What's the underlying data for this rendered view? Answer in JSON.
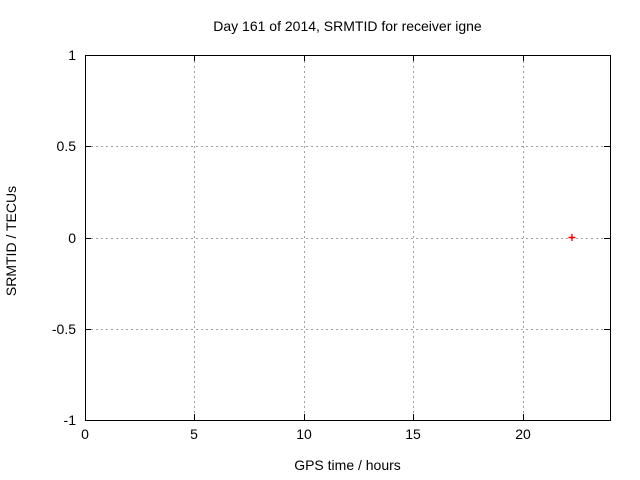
{
  "chart_data": {
    "type": "scatter",
    "title": "Day 161 of 2014, SRMTID for receiver igne",
    "xlabel": "GPS time / hours",
    "ylabel": "SRMTID / TECUs",
    "xlim": [
      0,
      24
    ],
    "ylim": [
      -1,
      1
    ],
    "xticks": {
      "values": [
        0,
        5,
        10,
        15,
        20
      ],
      "labels": [
        "0",
        "5",
        "10",
        "15",
        "20"
      ]
    },
    "yticks": {
      "values": [
        -1,
        -0.5,
        0,
        0.5,
        1
      ],
      "labels": [
        "-1",
        "-0.5",
        "0",
        "0.5",
        "1"
      ]
    },
    "grid": {
      "show": true,
      "color": "#a0a0a0",
      "style": "dotted"
    },
    "axis_color": "#000000",
    "background": "#ffffff",
    "legend": {
      "show": false
    },
    "series": [
      {
        "name": "SRMTID",
        "marker": "plus",
        "color": "#ff0000",
        "points": [
          {
            "x": 22.26,
            "y": 0
          }
        ]
      }
    ]
  }
}
